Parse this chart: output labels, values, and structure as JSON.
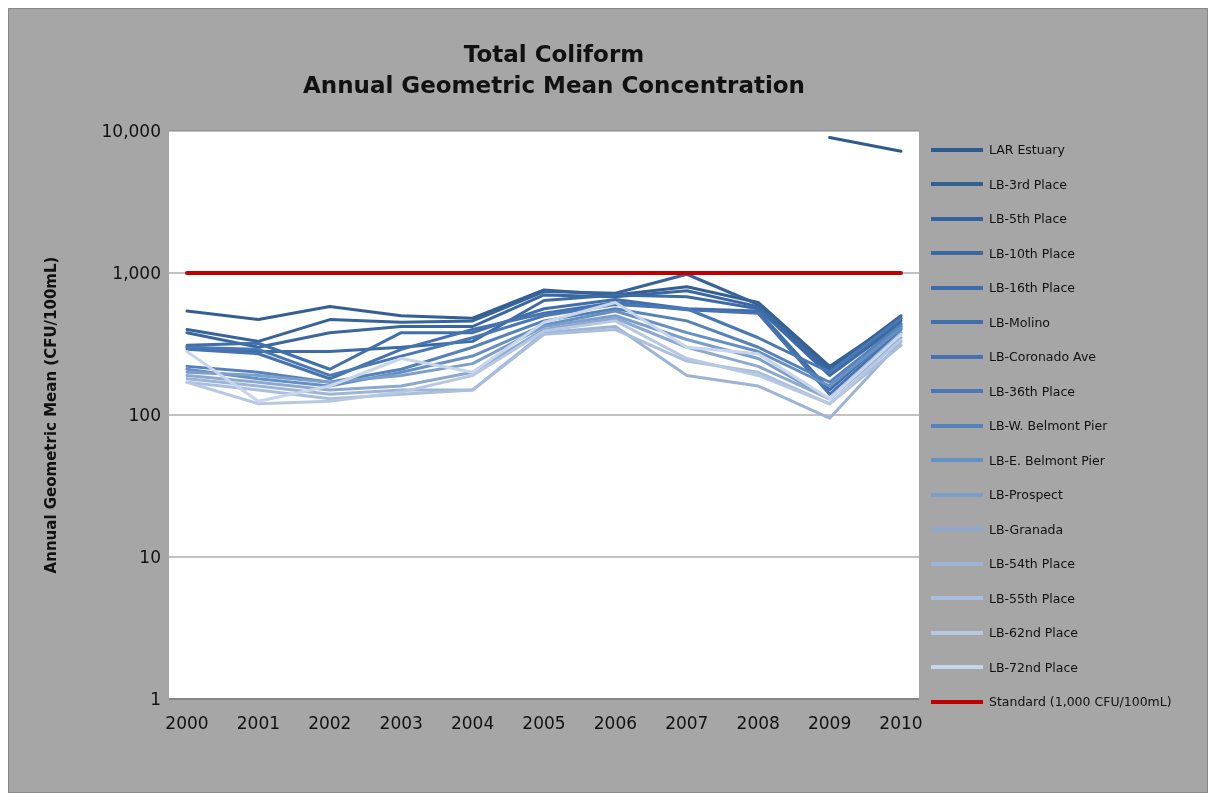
{
  "chart_data": {
    "type": "line",
    "title": "Total Coliform\nAnnual Geometric Mean Concentration",
    "ylabel": "Annual Geometric Mean (CFU/100mL)",
    "categories": [
      "2000",
      "2001",
      "2002",
      "2003",
      "2004",
      "2005",
      "2006",
      "2007",
      "2008",
      "2009",
      "2010"
    ],
    "log": "y",
    "ylim": [
      1,
      10000
    ],
    "yticks": [
      1,
      10,
      100,
      {
        "value": 1000,
        "label": "1,000"
      },
      {
        "value": 10000,
        "label": "10,000"
      }
    ],
    "grid": "y",
    "legend": "right",
    "marker": "none",
    "line_style": "solid",
    "series": [
      {
        "name": "LAR Estuary",
        "color": "#2e5a8e",
        "values": [
          null,
          null,
          null,
          null,
          null,
          null,
          null,
          null,
          null,
          9000,
          7200
        ]
      },
      {
        "name": "LB-3rd Place",
        "color": "#335f94",
        "values": [
          540,
          470,
          580,
          500,
          480,
          760,
          700,
          800,
          620,
          220,
          480
        ]
      },
      {
        "name": "LB-5th Place",
        "color": "#36639a",
        "values": [
          400,
          330,
          470,
          450,
          460,
          740,
          720,
          980,
          600,
          210,
          500
        ]
      },
      {
        "name": "LB-10th Place",
        "color": "#3a67a0",
        "values": [
          380,
          300,
          380,
          420,
          420,
          700,
          680,
          750,
          580,
          200,
          460
        ]
      },
      {
        "name": "LB-16th Place",
        "color": "#3d6ba6",
        "values": [
          300,
          280,
          280,
          300,
          330,
          640,
          700,
          680,
          560,
          190,
          440
        ]
      },
      {
        "name": "LB-Molino",
        "color": "#416fab",
        "values": [
          310,
          320,
          210,
          380,
          380,
          560,
          650,
          560,
          540,
          150,
          420
        ]
      },
      {
        "name": "LB-Coronado Ave",
        "color": "#4673b0",
        "values": [
          290,
          270,
          180,
          290,
          400,
          520,
          620,
          550,
          520,
          140,
          400
        ]
      },
      {
        "name": "LB-36th Place",
        "color": "#4a78b5",
        "values": [
          300,
          290,
          190,
          260,
          350,
          500,
          600,
          560,
          350,
          200,
          480
        ]
      },
      {
        "name": "LB-W. Belmont Pier",
        "color": "#5582bb",
        "values": [
          220,
          200,
          170,
          210,
          300,
          460,
          560,
          460,
          300,
          170,
          430
        ]
      },
      {
        "name": "LB-E. Belmont Pier",
        "color": "#6690c4",
        "values": [
          210,
          180,
          160,
          200,
          260,
          430,
          540,
          380,
          280,
          160,
          410
        ]
      },
      {
        "name": "LB-Prospect",
        "color": "#7b9ecb",
        "values": [
          200,
          190,
          170,
          190,
          230,
          420,
          500,
          340,
          250,
          130,
          380
        ]
      },
      {
        "name": "LB-Granada",
        "color": "#8da9d0",
        "values": [
          190,
          170,
          150,
          160,
          200,
          400,
          480,
          300,
          220,
          130,
          350
        ]
      },
      {
        "name": "LB-54th Place",
        "color": "#9eb4d6",
        "values": [
          180,
          160,
          140,
          150,
          150,
          380,
          420,
          190,
          160,
          95,
          330
        ]
      },
      {
        "name": "LB-55th Place",
        "color": "#aabfdd",
        "values": [
          170,
          150,
          130,
          140,
          150,
          370,
          400,
          240,
          200,
          120,
          310
        ]
      },
      {
        "name": "LB-62nd Place",
        "color": "#b7c8e2",
        "values": [
          170,
          120,
          125,
          145,
          190,
          390,
          460,
          250,
          190,
          120,
          340
        ]
      },
      {
        "name": "LB-72nd Place",
        "color": "#c8d5ea",
        "values": [
          280,
          125,
          160,
          250,
          200,
          450,
          620,
          300,
          270,
          130,
          370
        ]
      },
      {
        "name": "Standard (1,000 CFU/100mL)",
        "color": "#c00000",
        "values": [
          1000,
          1000,
          1000,
          1000,
          1000,
          1000,
          1000,
          1000,
          1000,
          1000,
          1000
        ]
      }
    ]
  }
}
